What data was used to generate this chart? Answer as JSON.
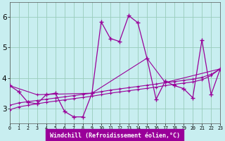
{
  "bg_color": "#c8eef0",
  "plot_bg": "#c8eef0",
  "line_color": "#990099",
  "grid_color": "#99ccbb",
  "xlabel": "Windchill (Refroidissement éolien,°C)",
  "xlabel_color": "#ffffff",
  "xlabel_bg": "#990099",
  "ytick_vals": [
    3,
    4,
    5,
    6
  ],
  "ylim": [
    2.5,
    6.5
  ],
  "xlim": [
    0,
    23
  ],
  "main_x": [
    0,
    1,
    2,
    3,
    4,
    5,
    6,
    7,
    8,
    9,
    10,
    11,
    12,
    13,
    14,
    15,
    16,
    17,
    18,
    19,
    20,
    21,
    22,
    23
  ],
  "main_y": [
    3.75,
    3.55,
    3.2,
    3.15,
    3.45,
    3.5,
    2.9,
    2.72,
    2.72,
    3.5,
    5.85,
    5.3,
    5.2,
    6.05,
    5.82,
    4.65,
    3.3,
    3.9,
    3.75,
    3.65,
    3.35,
    5.25,
    3.45,
    4.3
  ],
  "line2_x": [
    0,
    1,
    2,
    3,
    4,
    5,
    6,
    7,
    8,
    9,
    10,
    11,
    12,
    13,
    14,
    15,
    16,
    17,
    18,
    19,
    20,
    21,
    22,
    23
  ],
  "line2_y": [
    3.1,
    3.18,
    3.22,
    3.26,
    3.3,
    3.34,
    3.38,
    3.42,
    3.46,
    3.5,
    3.55,
    3.6,
    3.64,
    3.68,
    3.72,
    3.76,
    3.8,
    3.85,
    3.88,
    3.92,
    3.96,
    4.02,
    4.12,
    4.3
  ],
  "line3_x": [
    0,
    1,
    2,
    3,
    4,
    5,
    6,
    7,
    8,
    9,
    10,
    11,
    12,
    13,
    14,
    15,
    16,
    17,
    18,
    19,
    20,
    21,
    22,
    23
  ],
  "line3_y": [
    2.95,
    3.05,
    3.1,
    3.15,
    3.2,
    3.24,
    3.28,
    3.32,
    3.36,
    3.4,
    3.45,
    3.5,
    3.54,
    3.58,
    3.62,
    3.66,
    3.7,
    3.75,
    3.79,
    3.83,
    3.87,
    3.94,
    4.08,
    4.3
  ],
  "line4_x": [
    0,
    3,
    9,
    15,
    17,
    23
  ],
  "line4_y": [
    3.75,
    3.45,
    3.5,
    4.65,
    3.85,
    4.3
  ]
}
